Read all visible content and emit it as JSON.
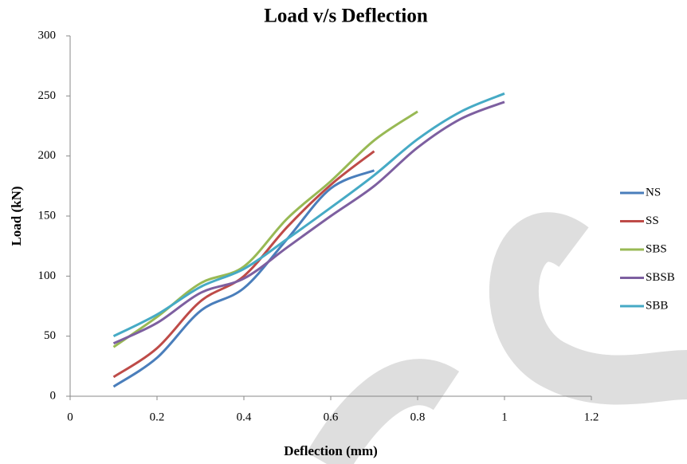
{
  "chart_data": {
    "type": "line",
    "title": "Load v/s Deflection",
    "x_label": "Deflection (mm)",
    "y_label": "Load (kN)",
    "x": [
      0.1,
      0.2,
      0.3,
      0.4,
      0.5,
      0.6,
      0.7,
      0.8,
      0.9,
      1.0
    ],
    "series": [
      {
        "name": "NS",
        "color": "#4a7ebb",
        "values": [
          8,
          32,
          71,
          90,
          131,
          173,
          188,
          null,
          null,
          null
        ]
      },
      {
        "name": "SS",
        "color": "#be4b48",
        "values": [
          16,
          40,
          79,
          100,
          141,
          176,
          204,
          null,
          null,
          null
        ]
      },
      {
        "name": "SBS",
        "color": "#98b954",
        "values": [
          41,
          66,
          94,
          108,
          148,
          179,
          213,
          237,
          null,
          null
        ]
      },
      {
        "name": "SBSB",
        "color": "#7d5fa0",
        "values": [
          44,
          61,
          86,
          98,
          124,
          150,
          175,
          207,
          231,
          245
        ]
      },
      {
        "name": "SBB",
        "color": "#46aac5",
        "values": [
          50,
          68,
          91,
          106,
          131,
          157,
          184,
          214,
          237,
          252
        ]
      }
    ],
    "xlim": [
      0,
      1.2
    ],
    "xticks": [
      0,
      0.2,
      0.4,
      0.6,
      0.8,
      1,
      1.2
    ],
    "ylim": [
      0,
      300
    ],
    "yticks": [
      0,
      50,
      100,
      150,
      200,
      250,
      300
    ],
    "grid": false,
    "legend": "right"
  }
}
